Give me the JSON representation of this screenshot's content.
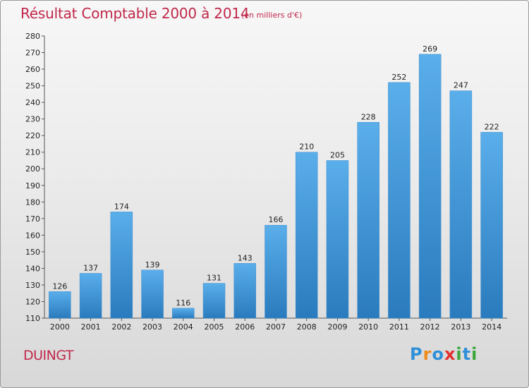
{
  "title": "Résultat Comptable 2000 à 2014",
  "unit": "(en milliers d'€)",
  "commune": "DUINGT",
  "logo": {
    "text": "Proxiti",
    "letters": [
      "P",
      "r",
      "o",
      "x",
      "i",
      "t",
      "i"
    ],
    "colors": [
      "#2f8fd8",
      "#f08a1c",
      "#2f8fd8",
      "#e0302f",
      "#3aa63a",
      "#2f8fd8",
      "#3aa63a"
    ]
  },
  "colors": {
    "bar_top": "#5aaeea",
    "bar_bottom": "#2a7bbd",
    "title": "#c0284a"
  },
  "chart_data": {
    "type": "bar",
    "categories": [
      "2000",
      "2001",
      "2002",
      "2003",
      "2004",
      "2005",
      "2006",
      "2007",
      "2008",
      "2009",
      "2010",
      "2011",
      "2012",
      "2013",
      "2014"
    ],
    "values": [
      126,
      137,
      174,
      139,
      116,
      131,
      143,
      166,
      210,
      205,
      228,
      252,
      269,
      247,
      222
    ],
    "title": "Résultat Comptable 2000 à 2014",
    "xlabel": "",
    "ylabel": "",
    "ylim": [
      110,
      280
    ],
    "yticks": [
      110,
      120,
      130,
      140,
      150,
      160,
      170,
      180,
      190,
      200,
      210,
      220,
      230,
      240,
      250,
      260,
      270,
      280
    ],
    "grid": false
  }
}
